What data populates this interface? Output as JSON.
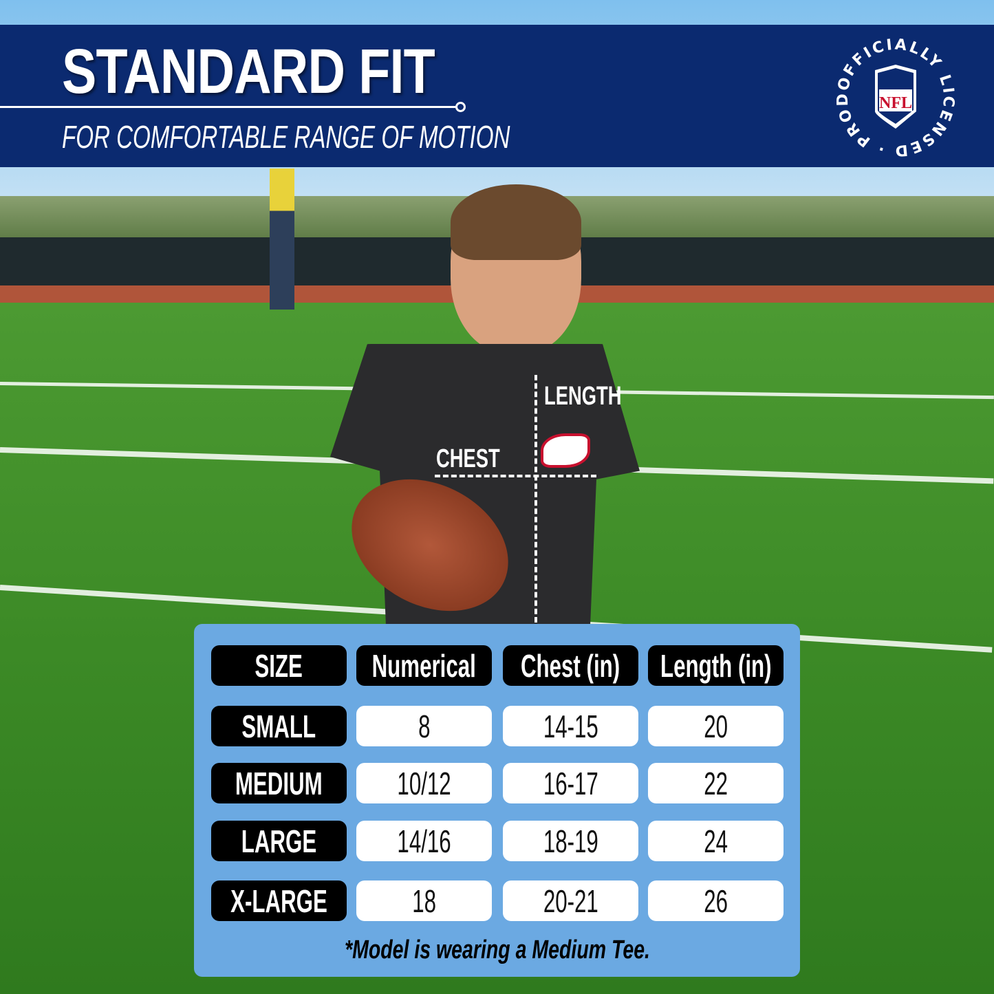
{
  "header": {
    "title": "STANDARD FIT",
    "subtitle": "FOR COMFORTABLE RANGE OF MOTION"
  },
  "badge": {
    "text": "OFFICIALLY LICENSED PRODUCT",
    "shield": "NFL"
  },
  "measure_labels": {
    "length": "LENGTH",
    "chest": "CHEST"
  },
  "table": {
    "headers": [
      "SIZE",
      "Numerical",
      "Chest (in)",
      "Length (in)"
    ],
    "rows": [
      [
        "SMALL",
        "8",
        "14-15",
        "20"
      ],
      [
        "MEDIUM",
        "10/12",
        "16-17",
        "22"
      ],
      [
        "LARGE",
        "14/16",
        "18-19",
        "24"
      ],
      [
        "X-LARGE",
        "18",
        "20-21",
        "26"
      ]
    ]
  },
  "footnote": "*Model is wearing a Medium Tee.",
  "colors": {
    "header": "#0b2a70",
    "panel": "#6ba9e2",
    "nfl_red": "#c8102e"
  }
}
